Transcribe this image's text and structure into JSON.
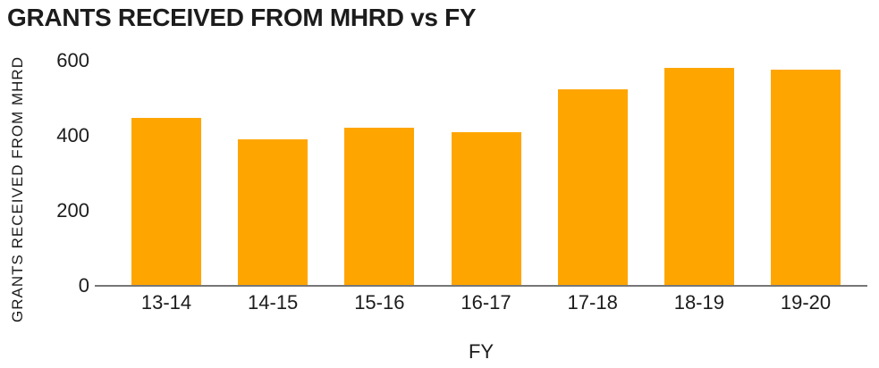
{
  "title": "GRANTS RECEIVED FROM MHRD vs FY",
  "colors": {
    "bar": "#FFA500",
    "axis_line": "#777777",
    "text": "#1C1C1C"
  },
  "chart_data": {
    "type": "bar",
    "title": "GRANTS RECEIVED FROM MHRD vs FY",
    "xlabel": "FY",
    "ylabel": "GRANTS RECEIVED FROM MHRD",
    "categories": [
      "13-14",
      "14-15",
      "15-16",
      "16-17",
      "17-18",
      "18-19",
      "19-20"
    ],
    "values": [
      445,
      387,
      419,
      406,
      522,
      578,
      573
    ],
    "yticks": [
      0,
      200,
      400,
      600
    ],
    "ylim": [
      0,
      600
    ],
    "grid": false,
    "legend": false,
    "bar_color": "#FFA500",
    "orientation": "vertical"
  }
}
